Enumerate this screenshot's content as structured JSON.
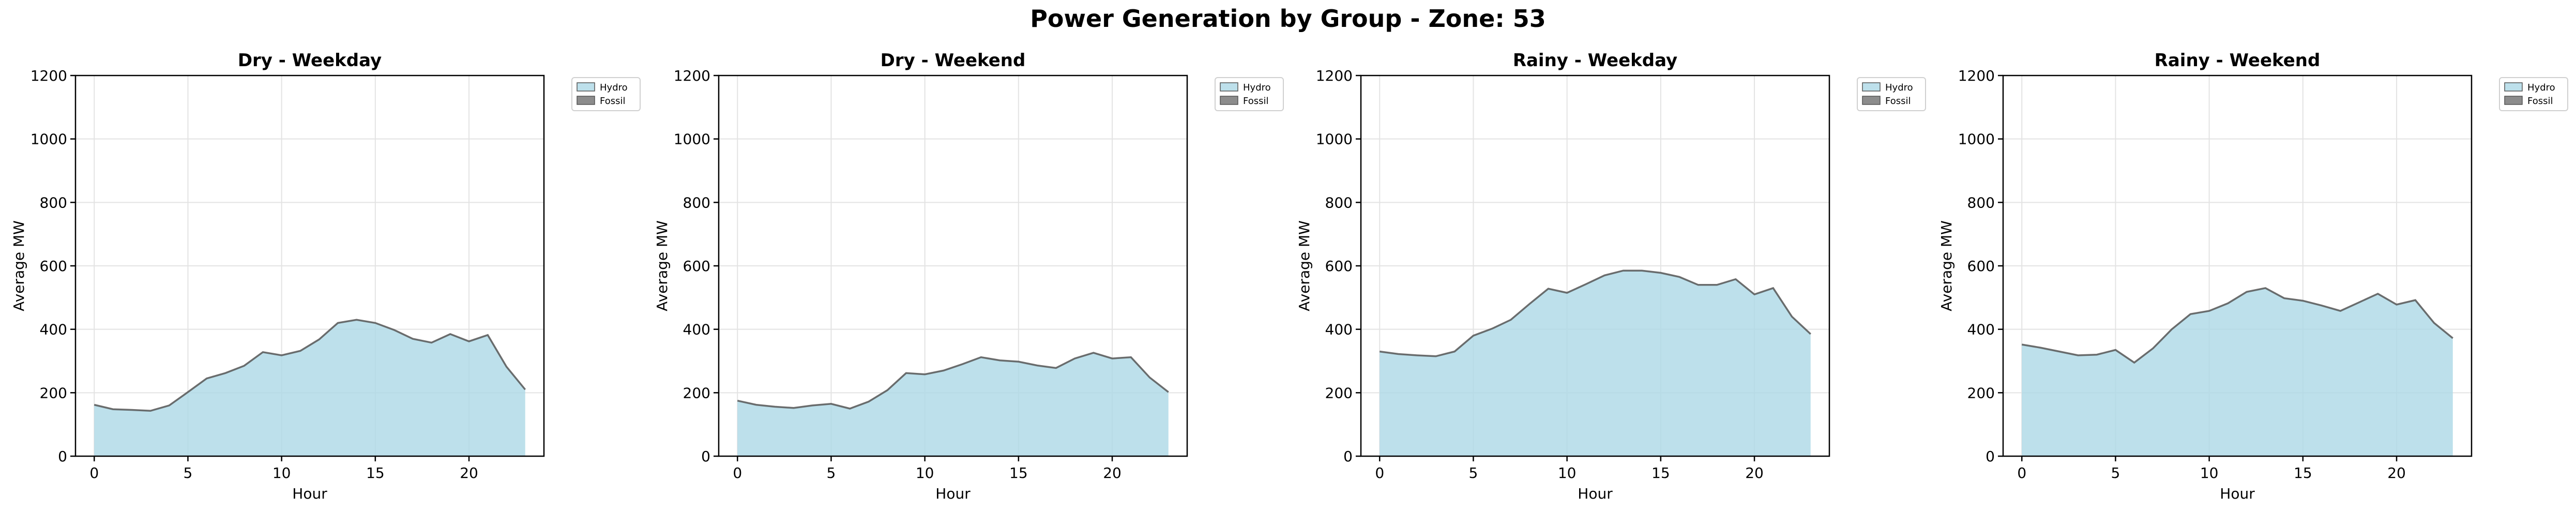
{
  "figure": {
    "title": "Power Generation by Group - Zone: 53"
  },
  "colors": {
    "hydro_fill": "#add8e6",
    "hydro_stroke": "#555555",
    "fossil_fill": "#808080",
    "grid": "#e3e3e3",
    "axis": "#000000"
  },
  "chart_data": [
    {
      "type": "area",
      "title": "Dry - Weekday",
      "xlabel": "Hour",
      "ylabel": "Average MW",
      "xlim": [
        -1,
        24
      ],
      "ylim": [
        0,
        1200
      ],
      "xticks": [
        0,
        5,
        10,
        15,
        20
      ],
      "yticks": [
        0,
        200,
        400,
        600,
        800,
        1000,
        1200
      ],
      "grid": true,
      "stacked": true,
      "legend_position": "outside-top-right",
      "x": [
        0,
        1,
        2,
        3,
        4,
        5,
        6,
        7,
        8,
        9,
        10,
        11,
        12,
        13,
        14,
        15,
        16,
        17,
        18,
        19,
        20,
        21,
        22,
        23
      ],
      "series": [
        {
          "name": "Hydro",
          "values": [
            162,
            148,
            146,
            143,
            160,
            202,
            245,
            262,
            285,
            328,
            318,
            332,
            368,
            420,
            430,
            420,
            398,
            370,
            358,
            385,
            362,
            382,
            282,
            210
          ]
        },
        {
          "name": "Fossil",
          "values": [
            0,
            0,
            0,
            0,
            0,
            0,
            0,
            0,
            0,
            0,
            0,
            0,
            0,
            0,
            0,
            0,
            0,
            0,
            0,
            0,
            0,
            0,
            0,
            0
          ]
        }
      ]
    },
    {
      "type": "area",
      "title": "Dry - Weekend",
      "xlabel": "Hour",
      "ylabel": "Average MW",
      "xlim": [
        -1,
        24
      ],
      "ylim": [
        0,
        1200
      ],
      "xticks": [
        0,
        5,
        10,
        15,
        20
      ],
      "yticks": [
        0,
        200,
        400,
        600,
        800,
        1000,
        1200
      ],
      "grid": true,
      "stacked": true,
      "legend_position": "outside-top-right",
      "x": [
        0,
        1,
        2,
        3,
        4,
        5,
        6,
        7,
        8,
        9,
        10,
        11,
        12,
        13,
        14,
        15,
        16,
        17,
        18,
        19,
        20,
        21,
        22,
        23
      ],
      "series": [
        {
          "name": "Hydro",
          "values": [
            175,
            162,
            156,
            152,
            160,
            165,
            150,
            172,
            208,
            262,
            258,
            270,
            290,
            312,
            302,
            298,
            286,
            278,
            308,
            326,
            308,
            312,
            248,
            202
          ]
        },
        {
          "name": "Fossil",
          "values": [
            0,
            0,
            0,
            0,
            0,
            0,
            0,
            0,
            0,
            0,
            0,
            0,
            0,
            0,
            0,
            0,
            0,
            0,
            0,
            0,
            0,
            0,
            0,
            0
          ]
        }
      ]
    },
    {
      "type": "area",
      "title": "Rainy - Weekday",
      "xlabel": "Hour",
      "ylabel": "Average MW",
      "xlim": [
        -1,
        24
      ],
      "ylim": [
        0,
        1200
      ],
      "xticks": [
        0,
        5,
        10,
        15,
        20
      ],
      "yticks": [
        0,
        200,
        400,
        600,
        800,
        1000,
        1200
      ],
      "grid": true,
      "stacked": true,
      "legend_position": "outside-top-right",
      "x": [
        0,
        1,
        2,
        3,
        4,
        5,
        6,
        7,
        8,
        9,
        10,
        11,
        12,
        13,
        14,
        15,
        16,
        17,
        18,
        19,
        20,
        21,
        22,
        23
      ],
      "series": [
        {
          "name": "Hydro",
          "values": [
            330,
            322,
            318,
            315,
            330,
            380,
            402,
            430,
            480,
            528,
            515,
            542,
            570,
            585,
            585,
            578,
            565,
            540,
            540,
            558,
            510,
            530,
            440,
            385
          ]
        },
        {
          "name": "Fossil",
          "values": [
            0,
            0,
            0,
            0,
            0,
            0,
            0,
            0,
            0,
            0,
            0,
            0,
            0,
            0,
            0,
            0,
            0,
            0,
            0,
            0,
            0,
            0,
            0,
            0
          ]
        }
      ]
    },
    {
      "type": "area",
      "title": "Rainy - Weekend",
      "xlabel": "Hour",
      "ylabel": "Average MW",
      "xlim": [
        -1,
        24
      ],
      "ylim": [
        0,
        1200
      ],
      "xticks": [
        0,
        5,
        10,
        15,
        20
      ],
      "yticks": [
        0,
        200,
        400,
        600,
        800,
        1000,
        1200
      ],
      "grid": true,
      "stacked": true,
      "legend_position": "outside-top-right",
      "x": [
        0,
        1,
        2,
        3,
        4,
        5,
        6,
        7,
        8,
        9,
        10,
        11,
        12,
        13,
        14,
        15,
        16,
        17,
        18,
        19,
        20,
        21,
        22,
        23
      ],
      "series": [
        {
          "name": "Hydro",
          "values": [
            352,
            342,
            330,
            318,
            320,
            335,
            295,
            340,
            400,
            448,
            458,
            482,
            518,
            530,
            498,
            490,
            475,
            458,
            485,
            512,
            478,
            492,
            420,
            372
          ]
        },
        {
          "name": "Fossil",
          "values": [
            0,
            0,
            0,
            0,
            0,
            0,
            0,
            0,
            0,
            0,
            0,
            0,
            0,
            0,
            0,
            0,
            0,
            0,
            0,
            0,
            0,
            0,
            0,
            0
          ]
        }
      ]
    }
  ]
}
